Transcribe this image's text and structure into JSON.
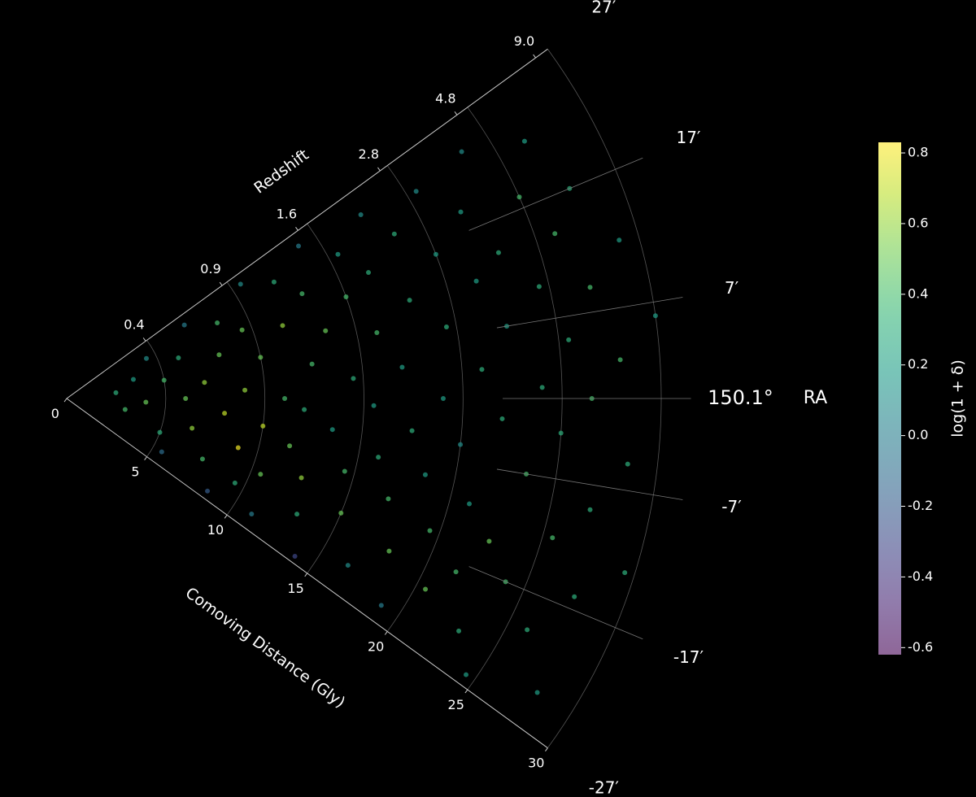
{
  "chart_data": {
    "type": "polar-wedge-scatter",
    "r_label": "Comoving Distance (Gly)",
    "redshift_label": "Redshift",
    "theta_label": "RA",
    "colorbar_label": "log(1 + δ)",
    "colormap": "viridis",
    "rlim": [
      0,
      30
    ],
    "rticks": [
      0,
      5,
      10,
      15,
      20,
      25,
      30
    ],
    "redshift_ticks": [
      0.4,
      0.9,
      1.6,
      2.8,
      4.8,
      {
        "value": 9,
        "label": "9.0"
      }
    ],
    "thetalim": [
      -27,
      27
    ],
    "thetaticks": [
      {
        "value": 27,
        "label": "27′"
      },
      {
        "value": 17,
        "label": "17′"
      },
      {
        "value": 7,
        "label": "7′"
      },
      {
        "value": 0,
        "label": "150.1°"
      },
      {
        "value": -7,
        "label": "-7′"
      },
      {
        "value": -17,
        "label": "-17′"
      },
      {
        "value": -27,
        "label": "-27′"
      }
    ],
    "clim": [
      -0.62,
      0.83
    ],
    "cticks": [
      -0.6,
      -0.4,
      -0.2,
      {
        "value": 0,
        "label": "0.0"
      },
      0.2,
      0.4,
      0.6,
      0.8
    ],
    "r": [
      2.5,
      3,
      3.5,
      4,
      4.5,
      5,
      5,
      5.5,
      6,
      6,
      6.5,
      7,
      7,
      7.5,
      8,
      8,
      8.5,
      8.5,
      9,
      9,
      9.5,
      9.5,
      10,
      10,
      10.5,
      10.5,
      11,
      11,
      11.5,
      11.5,
      12,
      12,
      12.5,
      12.5,
      13,
      13,
      13.5,
      13.5,
      14,
      14,
      14.5,
      14.5,
      15,
      15,
      15.5,
      15.5,
      16,
      16,
      16.5,
      16.5,
      17,
      17,
      17.5,
      17.5,
      18,
      18,
      18.5,
      18.5,
      19,
      19,
      19.5,
      19.5,
      20,
      20,
      20.5,
      20.5,
      21,
      21,
      21.5,
      21.5,
      22,
      22,
      22.5,
      22.5,
      23,
      23,
      23.5,
      23.5,
      24,
      24,
      24.5,
      24.5,
      25,
      25,
      25.5,
      25.5,
      26,
      26,
      26.5,
      26.5,
      27,
      27,
      27.5,
      27.5,
      28,
      28,
      28.5,
      29,
      29.5,
      30
    ],
    "theta": [
      5,
      -8,
      12,
      -2,
      20,
      -15,
      8,
      -22,
      0,
      15,
      -10,
      24,
      5,
      -18,
      -4,
      12,
      -25,
      20,
      -12,
      2,
      16,
      -20,
      -6,
      9,
      25,
      -16,
      0,
      -24,
      14,
      -9,
      22,
      -2,
      -14,
      6,
      18,
      -20,
      -5,
      11,
      -26,
      25,
      -11,
      3,
      15,
      -17,
      -1,
      21,
      -8,
      9,
      -23,
      17,
      -13,
      4,
      24,
      -4,
      12,
      -19,
      -9,
      20,
      0,
      -25,
      8,
      -15,
      16,
      -5,
      -21,
      23,
      3,
      -11,
      12,
      -18,
      -2,
      19,
      -14,
      7,
      -23,
      14,
      -7,
      24,
      1,
      -17,
      10,
      -26,
      18,
      -3,
      -12,
      5,
      -20,
      14,
      0,
      22,
      -9,
      9,
      -16,
      17,
      3,
      -24,
      -5,
      12,
      -13,
      6
    ],
    "values": [
      0.3,
      0.4,
      0.2,
      0.5,
      0.1,
      0.3,
      0.4,
      -0.1,
      0.5,
      0.3,
      0.6,
      0.0,
      0.6,
      0.4,
      0.7,
      0.5,
      -0.2,
      0.4,
      0.8,
      0.6,
      0.5,
      0.3,
      0.7,
      0.5,
      0.1,
      0.5,
      0.4,
      0.0,
      0.6,
      0.5,
      0.3,
      0.3,
      0.6,
      0.4,
      0.4,
      0.3,
      0.2,
      0.5,
      -0.3,
      0.0,
      0.4,
      0.3,
      0.4,
      0.5,
      0.2,
      0.2,
      0.3,
      0.4,
      0.1,
      0.3,
      0.4,
      0.2,
      0.1,
      0.3,
      0.3,
      0.5,
      0.2,
      0.3,
      0.2,
      0.0,
      0.3,
      0.4,
      0.2,
      0.1,
      0.5,
      0.1,
      0.3,
      0.2,
      0.2,
      0.4,
      0.3,
      0.2,
      0.5,
      0.2,
      0.3,
      0.3,
      0.4,
      0.1,
      0.3,
      0.4,
      0.3,
      0.2,
      0.4,
      0.3,
      0.4,
      0.3,
      0.3,
      0.4,
      0.4,
      0.2,
      0.3,
      0.4,
      0.3,
      0.3,
      0.4,
      0.2,
      0.3,
      0.2,
      0.3,
      0.2
    ]
  }
}
